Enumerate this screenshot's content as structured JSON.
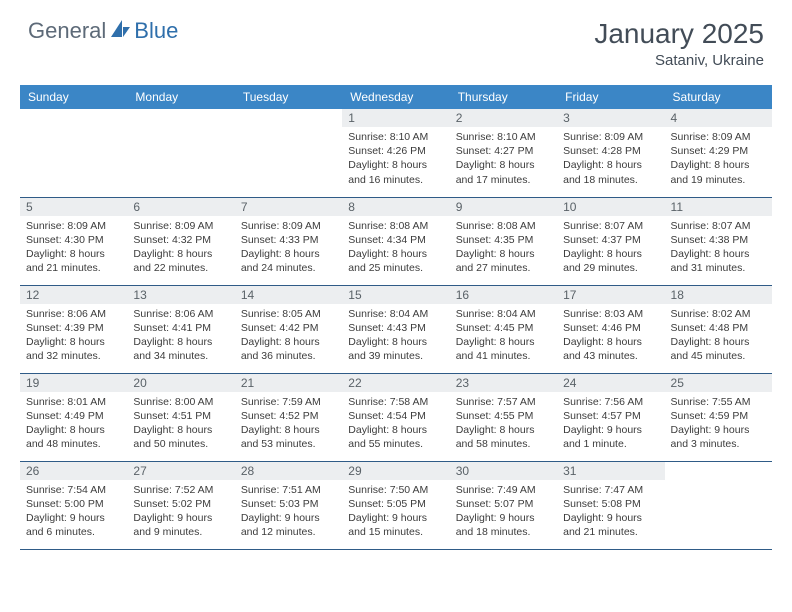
{
  "brand": {
    "text1": "General",
    "text2": "Blue",
    "color1": "#5d6a78",
    "color2": "#2f6fab"
  },
  "title": "January 2025",
  "location": "Sataniv, Ukraine",
  "header_bg": "#3b86c6",
  "daybar_bg": "#eceef0",
  "row_border": "#2f5b87",
  "weekdays": [
    "Sunday",
    "Monday",
    "Tuesday",
    "Wednesday",
    "Thursday",
    "Friday",
    "Saturday"
  ],
  "weeks": [
    [
      null,
      null,
      null,
      {
        "n": "1",
        "sr": "8:10 AM",
        "ss": "4:26 PM",
        "dh": "8",
        "dm": "16"
      },
      {
        "n": "2",
        "sr": "8:10 AM",
        "ss": "4:27 PM",
        "dh": "8",
        "dm": "17"
      },
      {
        "n": "3",
        "sr": "8:09 AM",
        "ss": "4:28 PM",
        "dh": "8",
        "dm": "18"
      },
      {
        "n": "4",
        "sr": "8:09 AM",
        "ss": "4:29 PM",
        "dh": "8",
        "dm": "19"
      }
    ],
    [
      {
        "n": "5",
        "sr": "8:09 AM",
        "ss": "4:30 PM",
        "dh": "8",
        "dm": "21"
      },
      {
        "n": "6",
        "sr": "8:09 AM",
        "ss": "4:32 PM",
        "dh": "8",
        "dm": "22"
      },
      {
        "n": "7",
        "sr": "8:09 AM",
        "ss": "4:33 PM",
        "dh": "8",
        "dm": "24"
      },
      {
        "n": "8",
        "sr": "8:08 AM",
        "ss": "4:34 PM",
        "dh": "8",
        "dm": "25"
      },
      {
        "n": "9",
        "sr": "8:08 AM",
        "ss": "4:35 PM",
        "dh": "8",
        "dm": "27"
      },
      {
        "n": "10",
        "sr": "8:07 AM",
        "ss": "4:37 PM",
        "dh": "8",
        "dm": "29"
      },
      {
        "n": "11",
        "sr": "8:07 AM",
        "ss": "4:38 PM",
        "dh": "8",
        "dm": "31"
      }
    ],
    [
      {
        "n": "12",
        "sr": "8:06 AM",
        "ss": "4:39 PM",
        "dh": "8",
        "dm": "32"
      },
      {
        "n": "13",
        "sr": "8:06 AM",
        "ss": "4:41 PM",
        "dh": "8",
        "dm": "34"
      },
      {
        "n": "14",
        "sr": "8:05 AM",
        "ss": "4:42 PM",
        "dh": "8",
        "dm": "36"
      },
      {
        "n": "15",
        "sr": "8:04 AM",
        "ss": "4:43 PM",
        "dh": "8",
        "dm": "39"
      },
      {
        "n": "16",
        "sr": "8:04 AM",
        "ss": "4:45 PM",
        "dh": "8",
        "dm": "41"
      },
      {
        "n": "17",
        "sr": "8:03 AM",
        "ss": "4:46 PM",
        "dh": "8",
        "dm": "43"
      },
      {
        "n": "18",
        "sr": "8:02 AM",
        "ss": "4:48 PM",
        "dh": "8",
        "dm": "45"
      }
    ],
    [
      {
        "n": "19",
        "sr": "8:01 AM",
        "ss": "4:49 PM",
        "dh": "8",
        "dm": "48"
      },
      {
        "n": "20",
        "sr": "8:00 AM",
        "ss": "4:51 PM",
        "dh": "8",
        "dm": "50"
      },
      {
        "n": "21",
        "sr": "7:59 AM",
        "ss": "4:52 PM",
        "dh": "8",
        "dm": "53"
      },
      {
        "n": "22",
        "sr": "7:58 AM",
        "ss": "4:54 PM",
        "dh": "8",
        "dm": "55"
      },
      {
        "n": "23",
        "sr": "7:57 AM",
        "ss": "4:55 PM",
        "dh": "8",
        "dm": "58"
      },
      {
        "n": "24",
        "sr": "7:56 AM",
        "ss": "4:57 PM",
        "dh": "9",
        "dm": "1",
        "min_word": "minute"
      },
      {
        "n": "25",
        "sr": "7:55 AM",
        "ss": "4:59 PM",
        "dh": "9",
        "dm": "3"
      }
    ],
    [
      {
        "n": "26",
        "sr": "7:54 AM",
        "ss": "5:00 PM",
        "dh": "9",
        "dm": "6"
      },
      {
        "n": "27",
        "sr": "7:52 AM",
        "ss": "5:02 PM",
        "dh": "9",
        "dm": "9"
      },
      {
        "n": "28",
        "sr": "7:51 AM",
        "ss": "5:03 PM",
        "dh": "9",
        "dm": "12"
      },
      {
        "n": "29",
        "sr": "7:50 AM",
        "ss": "5:05 PM",
        "dh": "9",
        "dm": "15"
      },
      {
        "n": "30",
        "sr": "7:49 AM",
        "ss": "5:07 PM",
        "dh": "9",
        "dm": "18"
      },
      {
        "n": "31",
        "sr": "7:47 AM",
        "ss": "5:08 PM",
        "dh": "9",
        "dm": "21"
      },
      null
    ]
  ]
}
